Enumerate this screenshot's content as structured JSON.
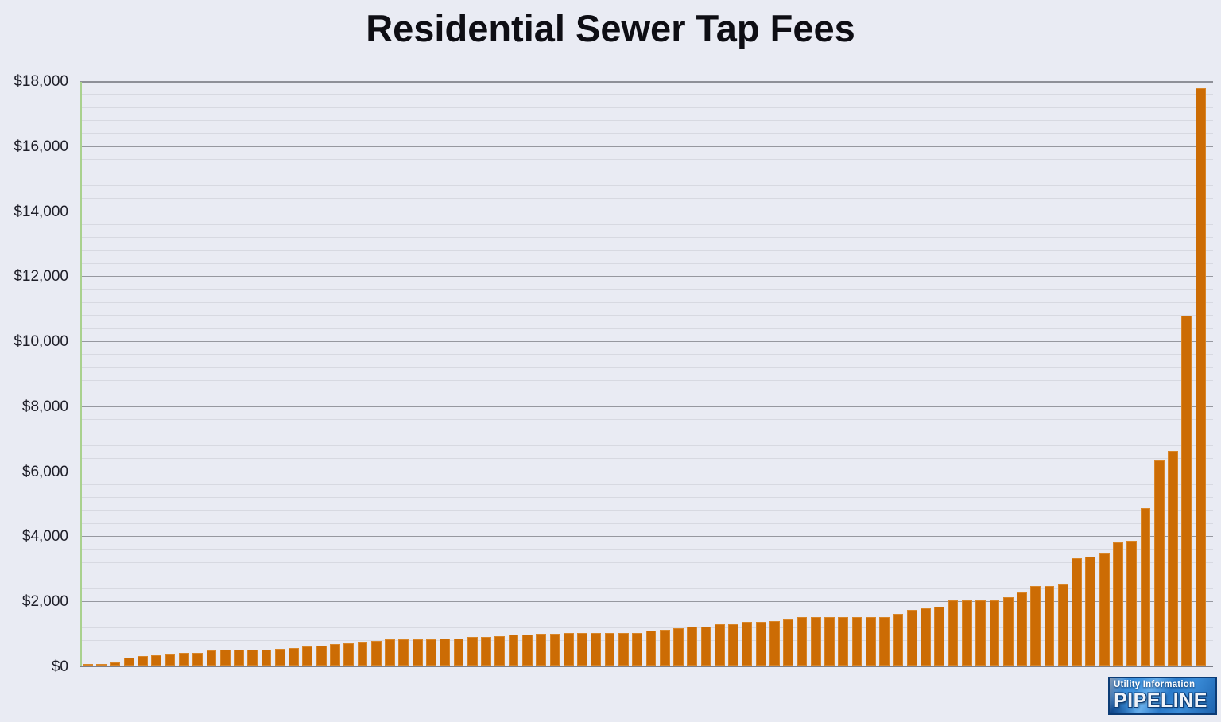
{
  "title": "Residential Sewer Tap Fees",
  "logo": {
    "line1": "Utility Information",
    "line2": "PIPELINE"
  },
  "colors": {
    "background": "#e9ebf3",
    "bar": "#cc6c04",
    "y_axis_line_green": "#a9d18e",
    "major_gridline": "#96989f",
    "minor_gridline": "#d7d9e1",
    "baseline": "#7d7f89",
    "title_text": "#0e0e14",
    "tick_text": "#1e1e28",
    "logo_blue": "#2d7fd0",
    "logo_border": "#0c3c76"
  },
  "chart_data": {
    "type": "bar",
    "title": "Residential Sewer Tap Fees",
    "xlabel": "",
    "ylabel": "",
    "ylim": [
      0,
      18000
    ],
    "y_tick_step": 2000,
    "y_minor_step": 400,
    "y_tick_labels": [
      "$0",
      "$2,000",
      "$4,000",
      "$6,000",
      "$8,000",
      "$10,000",
      "$12,000",
      "$14,000",
      "$16,000",
      "$18,000"
    ],
    "x_tick_labels_shown": false,
    "legend": "none",
    "grid": "horizontal major and minor",
    "sorted": "ascending",
    "values": [
      50,
      50,
      100,
      250,
      300,
      325,
      350,
      400,
      400,
      475,
      500,
      500,
      500,
      500,
      525,
      550,
      575,
      600,
      650,
      675,
      700,
      750,
      800,
      800,
      800,
      800,
      825,
      825,
      875,
      875,
      900,
      950,
      950,
      975,
      975,
      1000,
      1000,
      1000,
      1000,
      1000,
      1000,
      1075,
      1100,
      1150,
      1200,
      1200,
      1275,
      1275,
      1350,
      1350,
      1375,
      1425,
      1500,
      1500,
      1500,
      1500,
      1500,
      1500,
      1500,
      1600,
      1700,
      1750,
      1800,
      2000,
      2000,
      2000,
      2000,
      2100,
      2250,
      2450,
      2450,
      2500,
      3300,
      3350,
      3450,
      3800,
      3850,
      4850,
      6300,
      6600,
      10750,
      17750
    ]
  }
}
